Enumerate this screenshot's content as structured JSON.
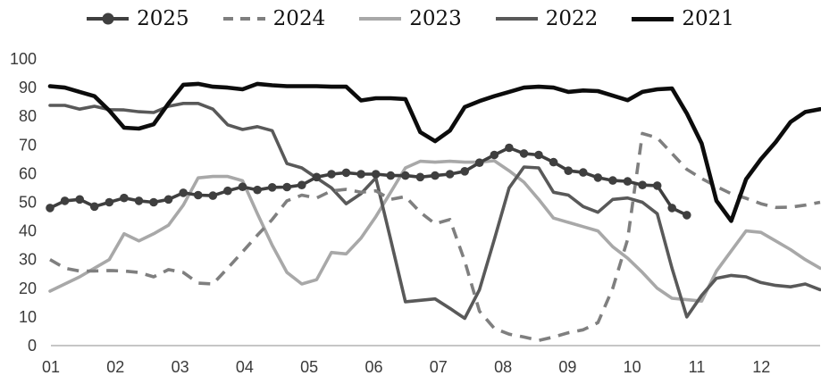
{
  "chart_data": {
    "type": "line",
    "title": "",
    "x_axis": {
      "tick_labels": [
        "01",
        "02",
        "03",
        "04",
        "05",
        "06",
        "07",
        "08",
        "09",
        "10",
        "11",
        "12"
      ],
      "description": "months of year, weekly data points"
    },
    "y_axis": {
      "tick_labels": [
        "0",
        "10",
        "20",
        "30",
        "40",
        "50",
        "60",
        "70",
        "80",
        "90",
        "100"
      ],
      "range": [
        0,
        100
      ]
    },
    "grid": false,
    "legend_position": "top",
    "axis_line_color": "#c6c6c6",
    "tick_text_color": "#3a3a3a",
    "series": [
      {
        "name": "2025",
        "color": "#3f3f3f",
        "style": "solid-markers",
        "values": [
          48,
          50.5,
          51,
          48.5,
          50,
          51.5,
          50.5,
          50,
          51,
          53.3,
          52.5,
          52.3,
          54,
          55.4,
          54.3,
          55.2,
          55.3,
          56,
          58.8,
          59.8,
          60.3,
          59.8,
          59.8,
          59.3,
          59.3,
          58.8,
          59.3,
          59.8,
          60.8,
          63.8,
          66.5,
          69,
          67,
          66.5,
          64,
          61,
          60.4,
          58.6,
          57.6,
          57.3,
          56,
          55.8,
          48,
          45.5
        ]
      },
      {
        "name": "2024",
        "color": "#7f7f7f",
        "style": "dashed",
        "values": [
          30,
          27,
          26,
          26,
          26.2,
          26,
          25.5,
          24,
          26.5,
          25.5,
          21.8,
          21.5,
          27,
          32.7,
          38.5,
          44,
          50.5,
          52.5,
          51.5,
          54,
          54.5,
          53.5,
          54,
          51,
          52,
          46.5,
          42.5,
          44,
          29.5,
          12,
          6,
          4,
          3,
          1.8,
          3,
          4.5,
          5.5,
          8,
          20,
          37,
          74,
          72.5,
          67,
          61.5,
          58.3,
          55.5,
          53,
          51.4,
          49.5,
          48.2,
          48.3,
          49,
          50
        ]
      },
      {
        "name": "2023",
        "color": "#a8a8a8",
        "style": "solid",
        "values": [
          19,
          21.5,
          24,
          27,
          30,
          39,
          36.5,
          39,
          42,
          49,
          58.5,
          59,
          59,
          57.5,
          46,
          35,
          25.5,
          21.5,
          23,
          32.5,
          32,
          37.5,
          45,
          53.5,
          62,
          64.3,
          64,
          64.3,
          64,
          64,
          64.5,
          61,
          57,
          51,
          44.5,
          43,
          41.5,
          40,
          34.5,
          30.5,
          25.5,
          20,
          16.5,
          16,
          15.5,
          26,
          33,
          40,
          39.5,
          36.5,
          33.5,
          30,
          27
        ]
      },
      {
        "name": "2022",
        "color": "#595959",
        "style": "solid",
        "values": [
          83.8,
          83.8,
          82.5,
          83.5,
          82.3,
          82.2,
          81.6,
          81.3,
          83.5,
          84.5,
          84.5,
          82.5,
          77,
          75.4,
          76.4,
          75,
          63.5,
          62,
          58.5,
          55,
          49.5,
          53,
          58.5,
          37,
          15.3,
          15.8,
          16.3,
          13,
          9.5,
          19.5,
          37,
          55,
          62.3,
          62,
          53.5,
          52.5,
          48.5,
          46.5,
          51,
          51.5,
          50,
          46,
          27,
          10,
          17.5,
          23.5,
          24.5,
          24,
          22,
          21,
          20.5,
          21.5,
          19.5
        ]
      },
      {
        "name": "2021",
        "color": "#0c0c0c",
        "style": "solid-thick",
        "values": [
          90.5,
          90,
          88.5,
          87,
          82,
          76,
          75.7,
          77.2,
          84.5,
          91,
          91.3,
          90.3,
          90,
          89.4,
          91.3,
          90.8,
          90.5,
          90.5,
          90.5,
          90.3,
          90.3,
          85.5,
          86.3,
          86.3,
          86,
          74.5,
          71.3,
          75,
          83.2,
          85.3,
          87,
          88.5,
          90,
          90.3,
          90,
          88.5,
          89,
          88.8,
          87.2,
          85.6,
          88.5,
          89.4,
          89.7,
          81,
          70.5,
          50.5,
          43.5,
          58,
          65,
          71,
          78,
          81.5,
          82.5
        ]
      }
    ]
  }
}
